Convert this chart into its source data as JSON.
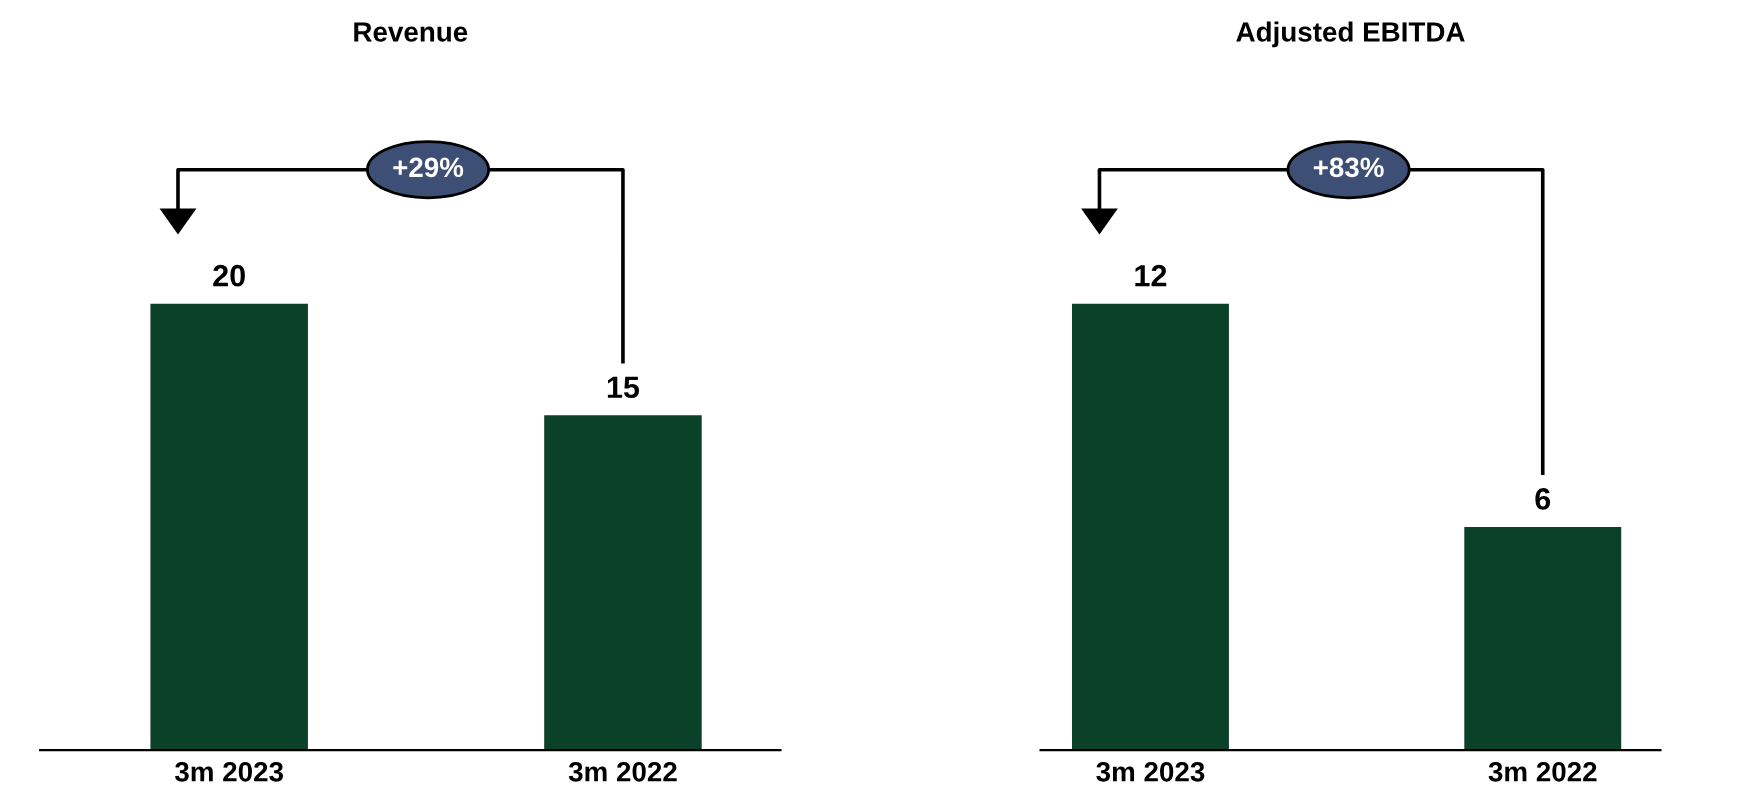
{
  "chart_data": [
    {
      "type": "bar",
      "title": "Revenue",
      "categories": [
        "3m 2023",
        "3m 2022"
      ],
      "values": [
        20,
        15
      ],
      "color": "#0b4029",
      "data_labels": true,
      "annotations": [
        "+29%"
      ]
    },
    {
      "type": "bar",
      "title": "Adjusted EBITDA",
      "categories": [
        "3m 2023",
        "3m 2022"
      ],
      "values": [
        12,
        6
      ],
      "color": "#0b4029",
      "data_labels": true,
      "annotations": [
        "+83%"
      ]
    }
  ]
}
